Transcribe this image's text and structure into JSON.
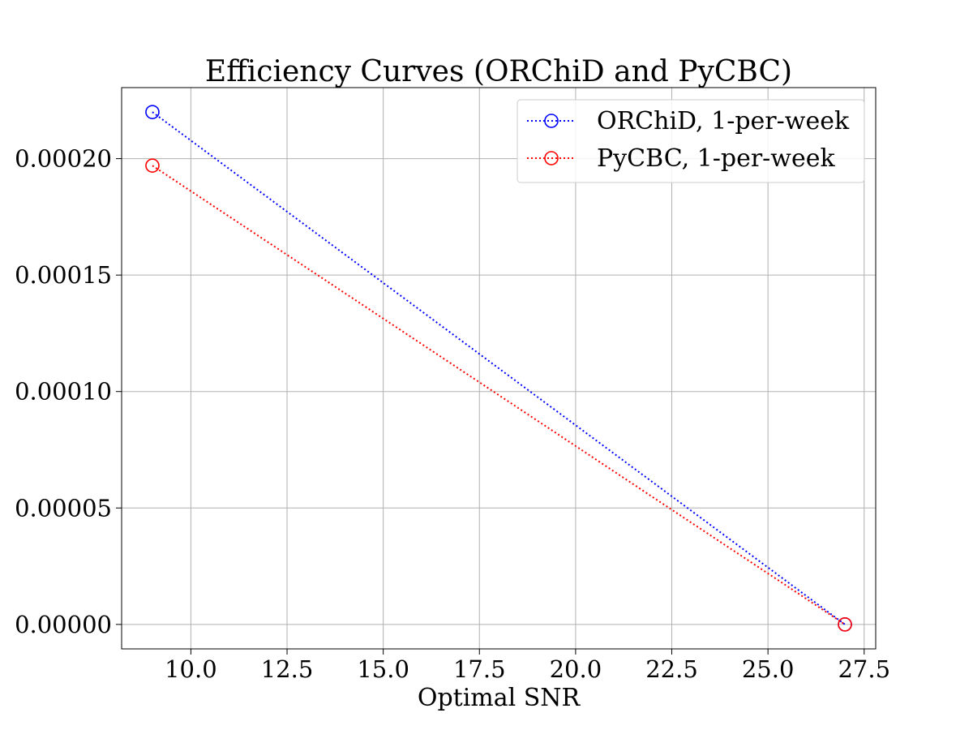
{
  "chart_data": {
    "type": "line",
    "title": "Efficiency Curves (ORChiD and PyCBC)",
    "xlabel": "Optimal SNR",
    "ylabel": "",
    "xlim": [
      8.2,
      27.8
    ],
    "ylim": [
      -1.05e-05,
      0.0002305
    ],
    "x_ticks": [
      10.0,
      12.5,
      15.0,
      17.5,
      20.0,
      22.5,
      25.0,
      27.5
    ],
    "x_tick_labels": [
      "10.0",
      "12.5",
      "15.0",
      "17.5",
      "20.0",
      "22.5",
      "25.0",
      "27.5"
    ],
    "y_ticks": [
      0.0,
      5e-05,
      0.0001,
      0.00015,
      0.0002
    ],
    "y_tick_labels": [
      "0.00000",
      "0.00005",
      "0.00010",
      "0.00015",
      "0.00020"
    ],
    "grid": true,
    "legend_position": "upper-right",
    "series": [
      {
        "name": "ORChiD, 1-per-week",
        "color": "#0000ff",
        "linestyle": "dotted",
        "marker": "open-circle",
        "x": [
          9.0,
          27.0
        ],
        "y": [
          0.00022,
          0.0
        ]
      },
      {
        "name": "PyCBC, 1-per-week",
        "color": "#ff0000",
        "linestyle": "dotted",
        "marker": "open-circle",
        "x": [
          9.0,
          27.0
        ],
        "y": [
          0.000197,
          0.0
        ]
      }
    ]
  }
}
